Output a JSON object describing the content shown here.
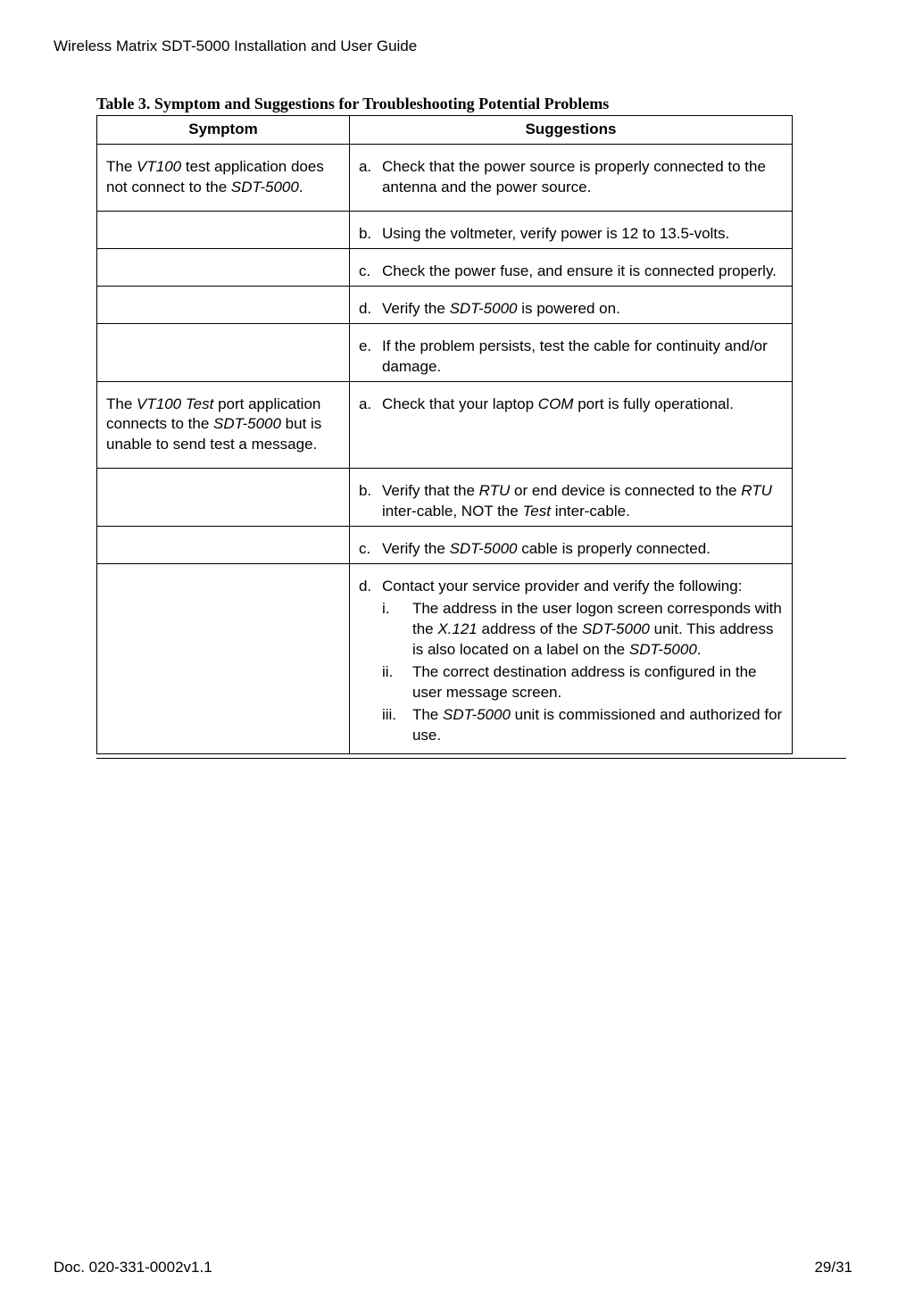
{
  "header": {
    "title": "Wireless Matrix SDT-5000 Installation and User Guide"
  },
  "table": {
    "caption": "Table 3.  Symptom and Suggestions for Troubleshooting Potential Problems",
    "columns": {
      "symptom": "Symptom",
      "suggestions": "Suggestions"
    },
    "rows": [
      {
        "symptom_parts": [
          {
            "t": "The ",
            "i": false
          },
          {
            "t": "VT100",
            "i": true
          },
          {
            "t": " test application does not connect to the ",
            "i": false
          },
          {
            "t": "SDT-5000",
            "i": true
          },
          {
            "t": ".",
            "i": false
          }
        ],
        "suggestion": {
          "marker": "a.",
          "text": "Check that the power source is properly connected to the antenna and the power source."
        }
      },
      {
        "symptom_parts": [],
        "suggestion": {
          "marker": "b.",
          "text": "Using the voltmeter, verify power is 12 to 13.5-volts."
        }
      },
      {
        "symptom_parts": [],
        "suggestion": {
          "marker": "c.",
          "text": "Check the power fuse, and ensure it is connected properly."
        }
      },
      {
        "symptom_parts": [],
        "suggestion": {
          "marker": "d.",
          "parts": [
            {
              "t": "Verify the ",
              "i": false
            },
            {
              "t": "SDT-5000",
              "i": true
            },
            {
              "t": " is powered on.",
              "i": false
            }
          ]
        }
      },
      {
        "symptom_parts": [],
        "suggestion": {
          "marker": "e.",
          "text": "If the problem persists, test the cable for continuity and/or damage."
        }
      },
      {
        "symptom_parts": [
          {
            "t": "The ",
            "i": false
          },
          {
            "t": "VT100 Test",
            "i": true
          },
          {
            "t": " port application connects to the ",
            "i": false
          },
          {
            "t": "SDT-5000",
            "i": true
          },
          {
            "t": " but is unable to send test a message.",
            "i": false
          }
        ],
        "suggestion": {
          "marker": "a.",
          "parts": [
            {
              "t": "Check that your laptop ",
              "i": false
            },
            {
              "t": "COM",
              "i": true
            },
            {
              "t": " port is fully operational.",
              "i": false
            }
          ]
        }
      },
      {
        "symptom_parts": [],
        "suggestion": {
          "marker": "b.",
          "parts": [
            {
              "t": "Verify that the ",
              "i": false
            },
            {
              "t": "RTU",
              "i": true
            },
            {
              "t": " or end device is connected to the ",
              "i": false
            },
            {
              "t": "RTU",
              "i": true
            },
            {
              "t": " inter-cable, NOT the ",
              "i": false
            },
            {
              "t": "Test",
              "i": true
            },
            {
              "t": " inter-cable.",
              "i": false
            }
          ]
        }
      },
      {
        "symptom_parts": [],
        "suggestion": {
          "marker": "c.",
          "parts": [
            {
              "t": "Verify the ",
              "i": false
            },
            {
              "t": "SDT-5000",
              "i": true
            },
            {
              "t": " cable is properly connected.",
              "i": false
            }
          ]
        }
      },
      {
        "symptom_parts": [],
        "suggestion": {
          "marker": "d.",
          "text": "Contact your service provider and verify the following:",
          "subitems": [
            {
              "marker": "i.",
              "parts": [
                {
                  "t": "The address in the user logon screen corresponds with the ",
                  "i": false
                },
                {
                  "t": "X.121",
                  "i": true
                },
                {
                  "t": " address of the ",
                  "i": false
                },
                {
                  "t": "SDT-5000",
                  "i": true
                },
                {
                  "t": " unit.  This address is also located on a label on the ",
                  "i": false
                },
                {
                  "t": "SDT-5000",
                  "i": true
                },
                {
                  "t": ".",
                  "i": false
                }
              ]
            },
            {
              "marker": "ii.",
              "text": "The correct destination address is configured in the user message screen."
            },
            {
              "marker": "iii.",
              "parts": [
                {
                  "t": "The ",
                  "i": false
                },
                {
                  "t": "SDT-5000",
                  "i": true
                },
                {
                  "t": " unit is commissioned and authorized for use.",
                  "i": false
                }
              ]
            }
          ]
        }
      }
    ]
  },
  "footer": {
    "doc_id": "Doc. 020-331-0002v1.1",
    "page_num": "29/31"
  }
}
